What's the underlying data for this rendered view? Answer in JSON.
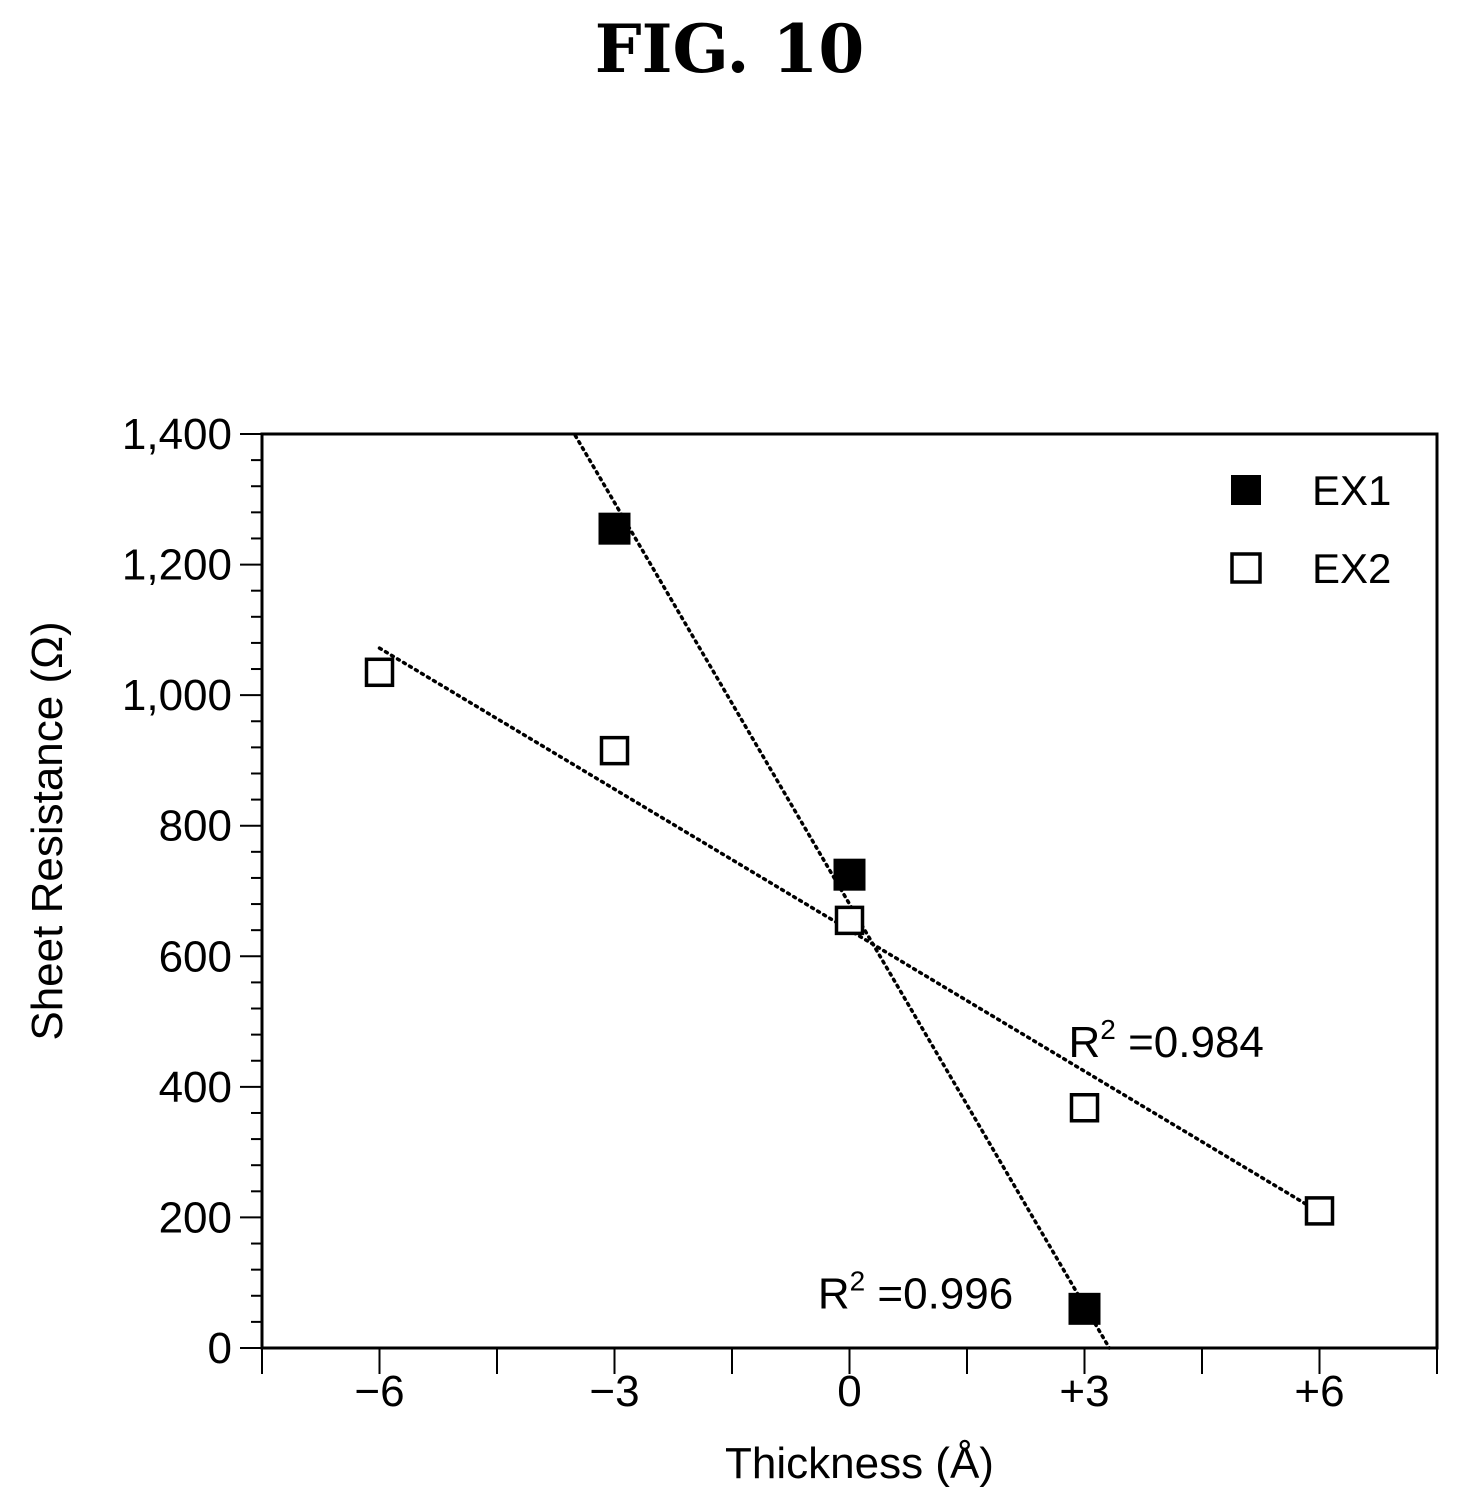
{
  "figure_label": "FIG. 10",
  "chart_data": {
    "type": "scatter",
    "xlabel": "Thickness (Å)",
    "ylabel": "Sheet Resistance (Ω)",
    "x_ticks": [
      {
        "value": -6,
        "label": "−6"
      },
      {
        "value": -3,
        "label": "−3"
      },
      {
        "value": 0,
        "label": "0"
      },
      {
        "value": 3,
        "label": "+3"
      },
      {
        "value": 6,
        "label": "+6"
      }
    ],
    "y_ticks": [
      {
        "value": 0,
        "label": "0"
      },
      {
        "value": 200,
        "label": "200"
      },
      {
        "value": 400,
        "label": "400"
      },
      {
        "value": 600,
        "label": "600"
      },
      {
        "value": 800,
        "label": "800"
      },
      {
        "value": 1000,
        "label": "1,000"
      },
      {
        "value": 1200,
        "label": "1,200"
      },
      {
        "value": 1400,
        "label": "1,400"
      }
    ],
    "xlim": [
      -7.5,
      7.5
    ],
    "ylim": [
      0,
      1400
    ],
    "grid": false,
    "legend_position": "top-right",
    "series": [
      {
        "name": "EX1",
        "marker": "filled-square",
        "color": "#000000",
        "points": [
          {
            "x": -3,
            "y": 1255
          },
          {
            "x": 0,
            "y": 725
          },
          {
            "x": 3,
            "y": 60
          }
        ],
        "trendline": {
          "slope": -205,
          "intercept": 680
        },
        "annotation": {
          "x": 1.0,
          "y": 85,
          "base": "R",
          "sup": "2",
          "rest": " =0.996"
        }
      },
      {
        "name": "EX2",
        "marker": "open-square",
        "color": "#000000",
        "points": [
          {
            "x": -6,
            "y": 1035
          },
          {
            "x": -3,
            "y": 915
          },
          {
            "x": 0,
            "y": 655
          },
          {
            "x": 3,
            "y": 368
          },
          {
            "x": 6,
            "y": 210
          }
        ],
        "trendline": {
          "slope": -72,
          "intercept": 640
        },
        "annotation": {
          "x": 4.2,
          "y": 470,
          "base": "R",
          "sup": "2",
          "rest": " =0.984"
        }
      }
    ]
  }
}
